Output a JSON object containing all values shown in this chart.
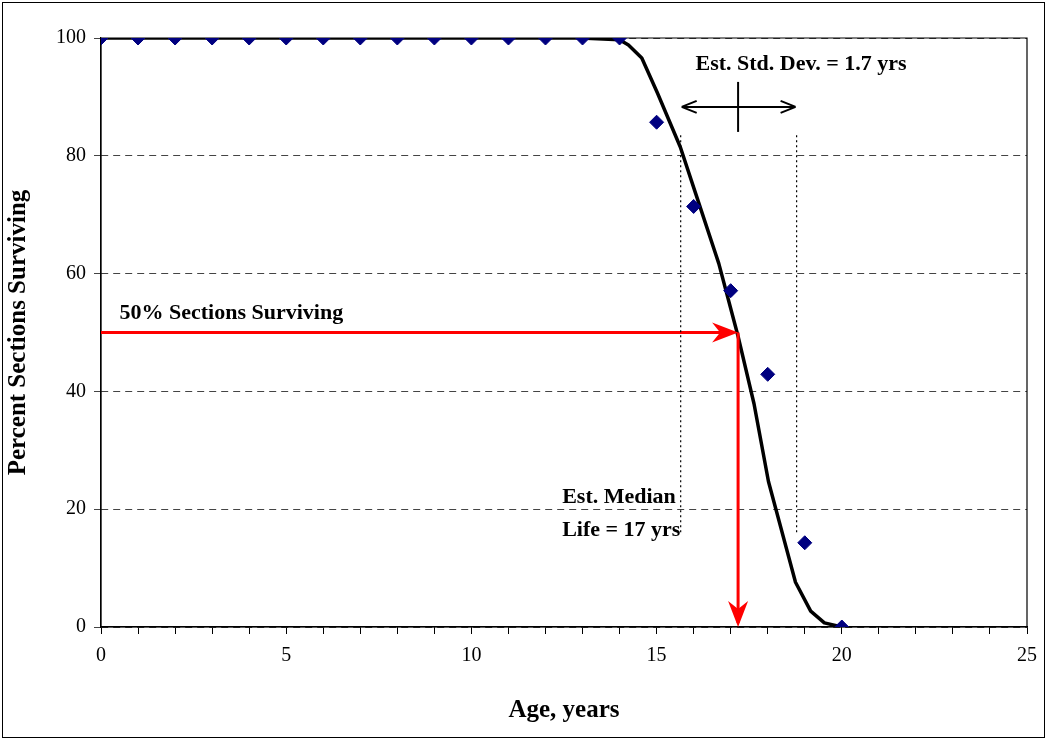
{
  "chart_data": {
    "type": "scatter",
    "xlabel": "Age, years",
    "ylabel": "Percent Sections Surviving",
    "xlim": [
      0,
      25
    ],
    "ylim": [
      0,
      100
    ],
    "xticks": [
      0,
      {
        "value": 1,
        "label": null
      },
      {
        "value": 2,
        "label": null
      },
      {
        "value": 3,
        "label": null
      },
      {
        "value": 4,
        "label": null
      },
      5,
      {
        "value": 6,
        "label": null
      },
      {
        "value": 7,
        "label": null
      },
      {
        "value": 8,
        "label": null
      },
      {
        "value": 9,
        "label": null
      },
      10,
      {
        "value": 11,
        "label": null
      },
      {
        "value": 12,
        "label": null
      },
      {
        "value": 13,
        "label": null
      },
      {
        "value": 14,
        "label": null
      },
      15,
      {
        "value": 16,
        "label": null
      },
      {
        "value": 17,
        "label": null
      },
      {
        "value": 18,
        "label": null
      },
      {
        "value": 19,
        "label": null
      },
      20,
      {
        "value": 21,
        "label": null
      },
      {
        "value": 22,
        "label": null
      },
      {
        "value": 23,
        "label": null
      },
      {
        "value": 24,
        "label": null
      },
      25
    ],
    "yticks": [
      0,
      20,
      40,
      60,
      80,
      100
    ],
    "grid": "y",
    "legend": false,
    "series": [
      {
        "color": "#000080",
        "marker": "diamond",
        "x": [
          0,
          1,
          2,
          3,
          4,
          5,
          6,
          7,
          8,
          9,
          10,
          11,
          12,
          13,
          14,
          15,
          16,
          17,
          18,
          19,
          20
        ],
        "values": [
          100,
          100,
          100,
          100,
          100,
          100,
          100,
          100,
          100,
          100,
          100,
          100,
          100,
          100,
          100,
          85.7,
          71.4,
          57.1,
          42.9,
          14.3,
          0
        ]
      },
      {
        "type": "line",
        "color": "#000000",
        "marker": "none",
        "line_style": "solid",
        "x": [
          0,
          12.95,
          14,
          14.24,
          14.6,
          15.02,
          15.64,
          16.06,
          16.68,
          17.21,
          17.63,
          18.02,
          18.75,
          19.16,
          19.53,
          20
        ],
        "values": [
          100,
          100,
          99.7,
          98.8,
          96.6,
          90.7,
          81.5,
          73.5,
          61.7,
          49.1,
          37.9,
          24.7,
          7.6,
          2.7,
          0.7,
          0
        ]
      }
    ],
    "ref_lines": [
      {
        "axis": "y",
        "value": 50,
        "color": "#ff0000",
        "line_style": "solid"
      },
      {
        "axis": "x",
        "value": 17.2,
        "color": "#ff0000",
        "line_style": "solid"
      },
      {
        "axis": "x",
        "value": 15.65,
        "color": "#000000",
        "line_style": "dotted"
      },
      {
        "axis": "x",
        "value": 18.78,
        "color": "#000000",
        "line_style": "dotted"
      }
    ],
    "annotations": [
      "50% Sections Surviving",
      "Est. Median\nLife = 17 yrs",
      "Est. Std. Dev. = 1.7 yrs"
    ]
  }
}
